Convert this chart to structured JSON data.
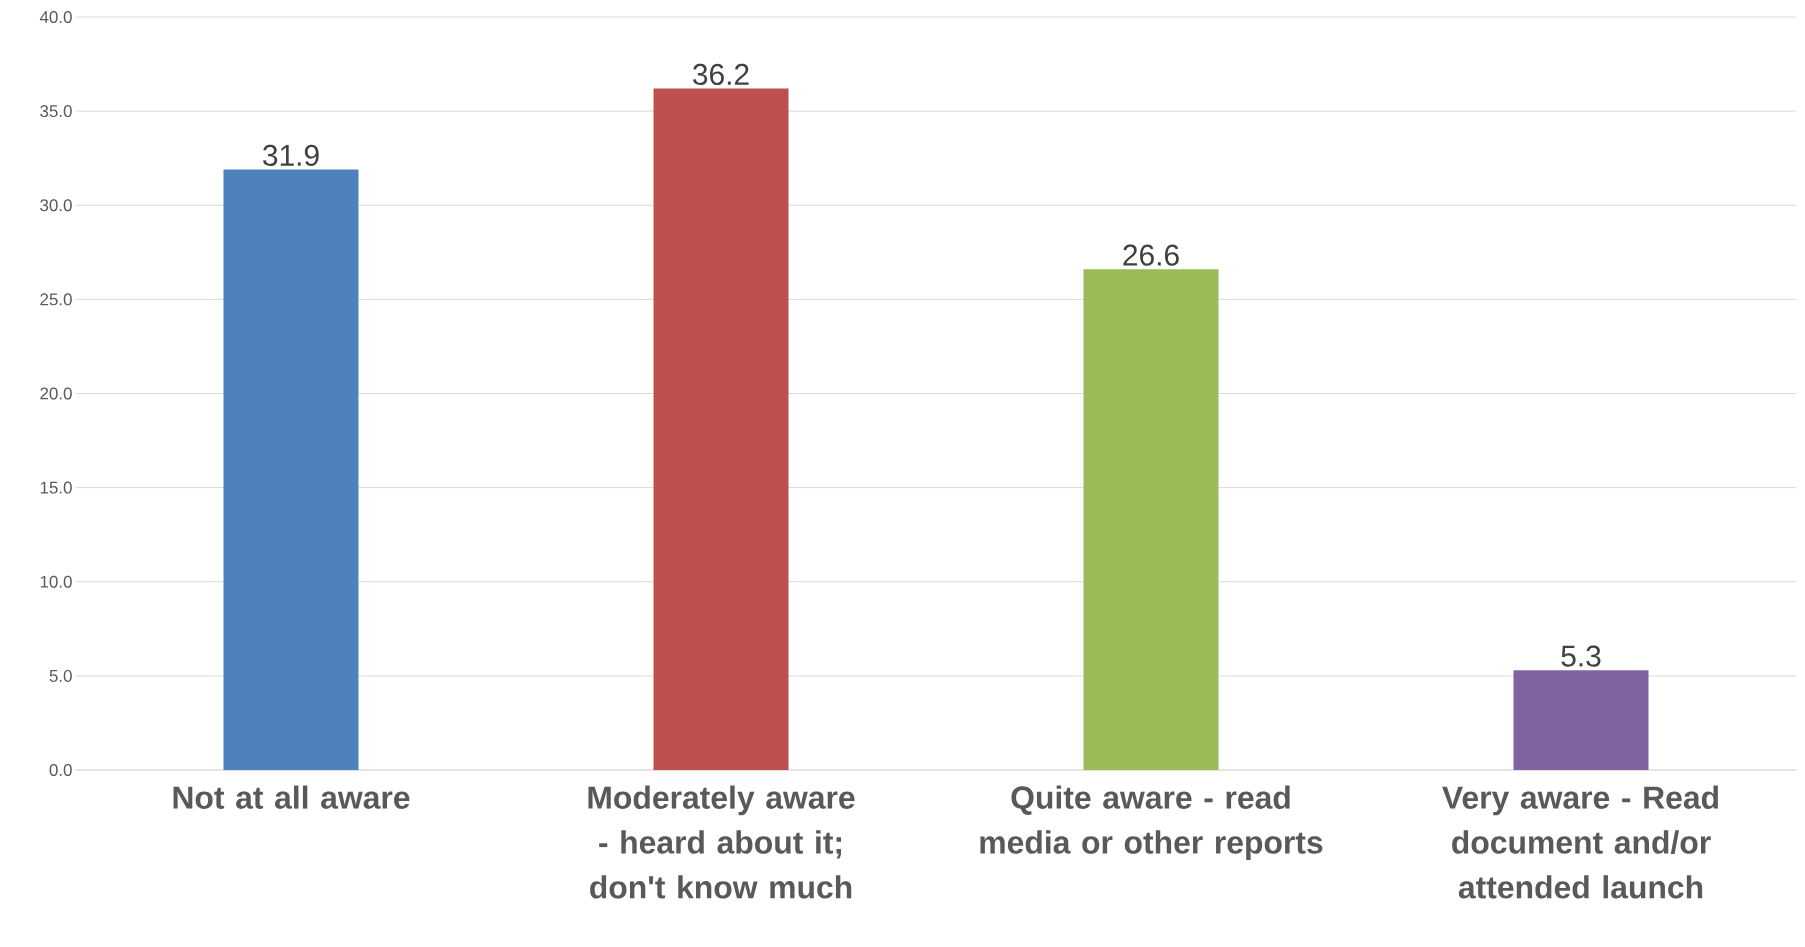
{
  "chart_data": {
    "type": "bar",
    "categories": [
      "Not at all aware",
      "Moderately aware - heard about it; don't know much",
      "Quite aware - read media or other reports",
      "Very aware - Read document and/or attended launch"
    ],
    "values": [
      31.9,
      36.2,
      26.6,
      5.3
    ],
    "colors": [
      "#4f81bd",
      "#c0504d",
      "#9bbb59",
      "#8064a2"
    ],
    "ylim": [
      0,
      40
    ],
    "yticks": [
      {
        "value": 0,
        "label": "0.0"
      },
      {
        "value": 5,
        "label": "5.0"
      },
      {
        "value": 10,
        "label": "10.0"
      },
      {
        "value": 15,
        "label": "15.0"
      },
      {
        "value": 20,
        "label": "20.0"
      },
      {
        "value": 25,
        "label": "25.0"
      },
      {
        "value": 30,
        "label": "30.0"
      },
      {
        "value": 35,
        "label": "35.0"
      },
      {
        "value": 40,
        "label": "40.0"
      }
    ],
    "grid": "y",
    "data_labels": true
  }
}
